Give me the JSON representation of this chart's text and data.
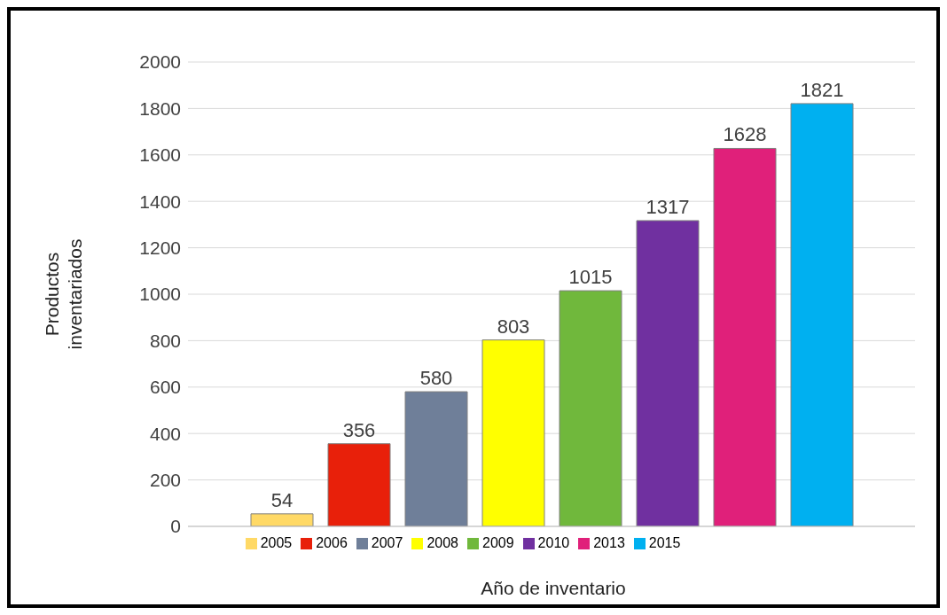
{
  "chart_data": {
    "type": "bar",
    "xlabel": "Año de inventario",
    "ylabel": "Productos inventariados",
    "categories": [
      null
    ],
    "series": [
      {
        "name": "2005",
        "color": "#ffd966",
        "values": [
          54
        ]
      },
      {
        "name": "2006",
        "color": "#e8200a",
        "values": [
          356
        ]
      },
      {
        "name": "2007",
        "color": "#6f7f99",
        "values": [
          580
        ]
      },
      {
        "name": "2008",
        "color": "#ffff00",
        "values": [
          803
        ]
      },
      {
        "name": "2009",
        "color": "#70b83c",
        "values": [
          1015
        ]
      },
      {
        "name": "2010",
        "color": "#7030a0",
        "values": [
          1317
        ]
      },
      {
        "name": "2013",
        "color": "#e0207a",
        "values": [
          1628
        ]
      },
      {
        "name": "2015",
        "color": "#00b0f0",
        "values": [
          1821
        ]
      }
    ],
    "ylim": [
      0,
      2000
    ],
    "yticks": [
      0,
      200,
      400,
      600,
      800,
      1000,
      1200,
      1400,
      1600,
      1800,
      2000
    ],
    "grid": "y",
    "legend": "bottom",
    "data_labels": true
  }
}
